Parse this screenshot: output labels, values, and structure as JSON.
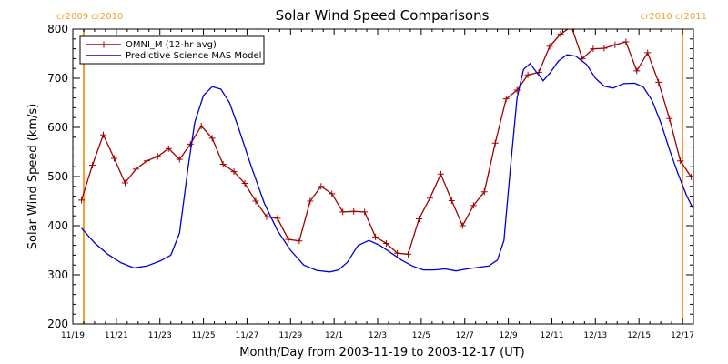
{
  "chart_data": {
    "type": "line",
    "title": "Solar Wind Speed Comparisons",
    "xlabel": "Month/Day from 2003-11-19 to 2003-12-17 (UT)",
    "ylabel": "Solar Wind Speed (km/s)",
    "xlim": [
      0,
      28.5
    ],
    "ylim": [
      200,
      800
    ],
    "x_ticks": [
      {
        "label": "11/19",
        "value": 0
      },
      {
        "label": "11/21",
        "value": 2
      },
      {
        "label": "11/23",
        "value": 4
      },
      {
        "label": "11/25",
        "value": 6
      },
      {
        "label": "11/27",
        "value": 8
      },
      {
        "label": "11/29",
        "value": 10
      },
      {
        "label": "12/1",
        "value": 12
      },
      {
        "label": "12/3",
        "value": 14
      },
      {
        "label": "12/5",
        "value": 16
      },
      {
        "label": "12/7",
        "value": 18
      },
      {
        "label": "12/9",
        "value": 20
      },
      {
        "label": "12/11",
        "value": 22
      },
      {
        "label": "12/13",
        "value": 24
      },
      {
        "label": "12/15",
        "value": 26
      },
      {
        "label": "12/17",
        "value": 28
      }
    ],
    "y_ticks": [
      200,
      300,
      400,
      500,
      600,
      700,
      800
    ],
    "legend": {
      "placement": "top-left",
      "entries": [
        {
          "label": "OMNI_M (12-hr avg)",
          "color": "#a00000"
        },
        {
          "label": "Predictive Science MAS Model",
          "color": "#0000d0"
        }
      ]
    },
    "annotations": [
      {
        "text": "cr2009 cr2010",
        "x": 0.5,
        "placement": "top-left"
      },
      {
        "text": "cr2010 cr2011",
        "x": 28.0,
        "placement": "top-right"
      }
    ],
    "vlines": [
      {
        "x": 0.5,
        "color": "#f0a030"
      },
      {
        "x": 28.0,
        "color": "#f0a030"
      }
    ],
    "series": [
      {
        "name": "OMNI_M (12-hr avg)",
        "color": "#a00000",
        "marker": "+",
        "points": [
          [
            0.4,
            452
          ],
          [
            0.9,
            523
          ],
          [
            1.4,
            585
          ],
          [
            1.9,
            537
          ],
          [
            2.4,
            487
          ],
          [
            2.9,
            515
          ],
          [
            3.4,
            532
          ],
          [
            3.9,
            541
          ],
          [
            4.4,
            557
          ],
          [
            4.9,
            535
          ],
          [
            5.4,
            566
          ],
          [
            5.9,
            603
          ],
          [
            6.4,
            578
          ],
          [
            6.9,
            525
          ],
          [
            7.4,
            510
          ],
          [
            7.9,
            486
          ],
          [
            8.4,
            450
          ],
          [
            8.9,
            418
          ],
          [
            9.4,
            415
          ],
          [
            9.9,
            372
          ],
          [
            10.4,
            369
          ],
          [
            10.9,
            450
          ],
          [
            11.4,
            480
          ],
          [
            11.9,
            465
          ],
          [
            12.4,
            428
          ],
          [
            12.9,
            429
          ],
          [
            13.4,
            428
          ],
          [
            13.9,
            377
          ],
          [
            14.4,
            364
          ],
          [
            14.9,
            344
          ],
          [
            15.4,
            342
          ],
          [
            15.9,
            414
          ],
          [
            16.4,
            456
          ],
          [
            16.9,
            505
          ],
          [
            17.4,
            451
          ],
          [
            17.9,
            400
          ],
          [
            18.4,
            441
          ],
          [
            18.9,
            469
          ],
          [
            19.4,
            568
          ],
          [
            19.9,
            658
          ],
          [
            20.4,
            676
          ],
          [
            20.9,
            707
          ],
          [
            21.4,
            712
          ],
          [
            21.9,
            765
          ],
          [
            22.4,
            790
          ],
          [
            22.9,
            805
          ],
          [
            23.4,
            740
          ],
          [
            23.9,
            760
          ],
          [
            24.4,
            761
          ],
          [
            24.9,
            768
          ],
          [
            25.4,
            774
          ],
          [
            25.9,
            715
          ],
          [
            26.4,
            752
          ],
          [
            26.9,
            692
          ],
          [
            27.4,
            618
          ],
          [
            27.9,
            532
          ],
          [
            28.4,
            499
          ]
        ]
      },
      {
        "name": "Predictive Science MAS Model",
        "color": "#0000d0",
        "points": [
          [
            0.4,
            395
          ],
          [
            1.0,
            365
          ],
          [
            1.6,
            342
          ],
          [
            2.2,
            325
          ],
          [
            2.8,
            314
          ],
          [
            3.4,
            318
          ],
          [
            4.0,
            328
          ],
          [
            4.5,
            340
          ],
          [
            4.9,
            385
          ],
          [
            5.3,
            520
          ],
          [
            5.6,
            610
          ],
          [
            6.0,
            665
          ],
          [
            6.4,
            683
          ],
          [
            6.8,
            678
          ],
          [
            7.2,
            650
          ],
          [
            7.6,
            600
          ],
          [
            8.2,
            520
          ],
          [
            8.8,
            445
          ],
          [
            9.4,
            390
          ],
          [
            10.0,
            350
          ],
          [
            10.6,
            320
          ],
          [
            11.2,
            309
          ],
          [
            11.8,
            306
          ],
          [
            12.2,
            310
          ],
          [
            12.6,
            325
          ],
          [
            13.1,
            360
          ],
          [
            13.6,
            370
          ],
          [
            14.1,
            360
          ],
          [
            14.6,
            345
          ],
          [
            15.1,
            330
          ],
          [
            15.6,
            318
          ],
          [
            16.1,
            310
          ],
          [
            16.6,
            310
          ],
          [
            17.1,
            312
          ],
          [
            17.6,
            308
          ],
          [
            18.1,
            312
          ],
          [
            18.6,
            315
          ],
          [
            19.1,
            318
          ],
          [
            19.5,
            330
          ],
          [
            19.8,
            370
          ],
          [
            20.1,
            520
          ],
          [
            20.4,
            660
          ],
          [
            20.7,
            718
          ],
          [
            21.0,
            730
          ],
          [
            21.3,
            712
          ],
          [
            21.6,
            695
          ],
          [
            21.9,
            710
          ],
          [
            22.3,
            735
          ],
          [
            22.7,
            748
          ],
          [
            23.1,
            745
          ],
          [
            23.6,
            728
          ],
          [
            24.0,
            700
          ],
          [
            24.4,
            684
          ],
          [
            24.8,
            680
          ],
          [
            25.3,
            689
          ],
          [
            25.8,
            690
          ],
          [
            26.2,
            682
          ],
          [
            26.6,
            655
          ],
          [
            27.0,
            610
          ],
          [
            27.4,
            555
          ],
          [
            27.8,
            505
          ],
          [
            28.2,
            460
          ],
          [
            28.6,
            425
          ],
          [
            28.9,
            395
          ]
        ]
      }
    ]
  }
}
